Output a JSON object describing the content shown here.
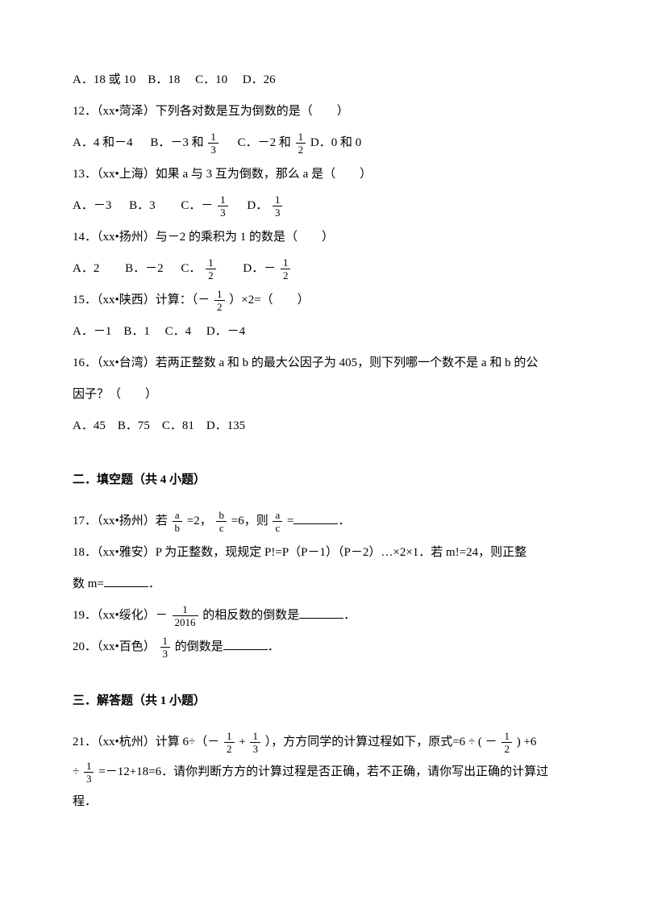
{
  "q11_opts": "A．18 或 10　B．18　 C．10　 D．26",
  "q12_stem": "12．（xx•菏泽）下列各对数是互为倒数的是（　　）",
  "q12_a": "A．4 和－4",
  "q12_b_pre": "B．－3 和",
  "q12_b_fn": "1",
  "q12_b_fd": "3",
  "q12_c_pre": "C．－2 和",
  "q12_c_fn": "1",
  "q12_c_fd": "2",
  "q12_d": "D．0 和 0",
  "q13_stem": "13．（xx•上海）如果 a 与 3 互为倒数，那么 a 是（　　）",
  "q13_a": "A．－3",
  "q13_b": "B．3",
  "q13_c_pre": "C．－",
  "q13_c_fn": "1",
  "q13_c_fd": "3",
  "q13_d_pre": "D．",
  "q13_d_fn": "1",
  "q13_d_fd": "3",
  "q14_stem": "14．（xx•扬州）与－2 的乘积为 1 的数是（　　）",
  "q14_a": "A．2",
  "q14_b": "B．－2",
  "q14_c_pre": "C．",
  "q14_c_fn": "1",
  "q14_c_fd": "2",
  "q14_d_pre": "D．－",
  "q14_d_fn": "1",
  "q14_d_fd": "2",
  "q15_pre": "15．（xx•陕西）计算：（－",
  "q15_fn": "1",
  "q15_fd": "2",
  "q15_post": "）×2=（　　）",
  "q15_opts": "A．－1　B．1　 C．4　 D．－4",
  "q16_l1": "16．（xx•台湾）若两正整数 a 和 b 的最大公因子为 405，则下列哪一个数不是 a 和 b 的公",
  "q16_l2": "因子？（　　）",
  "q16_opts": "A．45　B．75　C．81　D．135",
  "sec2": "二．填空题（共 4 小题）",
  "q17_pre": "17．（xx•扬州）若",
  "q17_f1n": "a",
  "q17_f1d": "b",
  "q17_mid1": "=2，",
  "q17_f2n": "b",
  "q17_f2d": "c",
  "q17_mid2": "=6，则",
  "q17_f3n": "a",
  "q17_f3d": "c",
  "q17_post": "=",
  "period": "．",
  "q18_l1": "18．（xx•雅安）P 为正整数，现规定 P!=P（P－1）（P－2）…×2×1．若 m!=24，则正整",
  "q18_l2_pre": "数 m=",
  "q19_pre": "19．（xx•绥化）－",
  "q19_fn": "1",
  "q19_fd": "2016",
  "q19_post": "的相反数的倒数是",
  "q20_pre": "20．（xx•百色）",
  "q20_fn": "1",
  "q20_fd": "3",
  "q20_post": "的倒数是",
  "sec3": "三．解答题（共 1 小题）",
  "q21_pre": "21．（xx•杭州）计算 6÷（－",
  "q21_f1n": "1",
  "q21_f1d": "2",
  "q21_plus": "+",
  "q21_f2n": "1",
  "q21_f2d": "3",
  "q21_mid": "），方方同学的计算过程如下，原式=6",
  "q21_div1": "÷",
  "q21_lp": "(",
  "q21_neg": "－",
  "q21_f3n": "1",
  "q21_f3d": "2",
  "q21_rp": ")",
  "q21_plus6": "+6",
  "q21_l2_div": "÷",
  "q21_f4n": "1",
  "q21_f4d": "3",
  "q21_l2_rest": "=－12+18=6．请你判断方方的计算过程是否正确，若不正确，请你写出正确的计算过",
  "q21_l3": "程．"
}
